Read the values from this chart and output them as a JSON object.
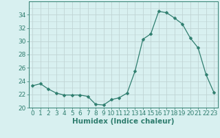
{
  "x": [
    0,
    1,
    2,
    3,
    4,
    5,
    6,
    7,
    8,
    9,
    10,
    11,
    12,
    13,
    14,
    15,
    16,
    17,
    18,
    19,
    20,
    21,
    22,
    23
  ],
  "y": [
    23.3,
    23.6,
    22.8,
    22.2,
    21.9,
    21.9,
    21.9,
    21.7,
    20.5,
    20.4,
    21.2,
    21.5,
    22.2,
    25.5,
    30.3,
    31.1,
    34.5,
    34.3,
    33.5,
    32.6,
    30.5,
    29.0,
    25.0,
    22.3
  ],
  "line_color": "#2e7d6e",
  "marker": "D",
  "marker_size": 2.5,
  "bg_color": "#d8f0f0",
  "grid_major_color": "#c0d4d4",
  "grid_minor_color": "#d0e4e4",
  "tick_color": "#2e7d6e",
  "xlabel": "Humidex (Indice chaleur)",
  "ylim": [
    20,
    36
  ],
  "xlim": [
    -0.5,
    23.5
  ],
  "yticks": [
    20,
    22,
    24,
    26,
    28,
    30,
    32,
    34
  ],
  "xticks": [
    0,
    1,
    2,
    3,
    4,
    5,
    6,
    7,
    8,
    9,
    10,
    11,
    12,
    13,
    14,
    15,
    16,
    17,
    18,
    19,
    20,
    21,
    22,
    23
  ],
  "font_size": 6.5,
  "xlabel_font_size": 7.5
}
